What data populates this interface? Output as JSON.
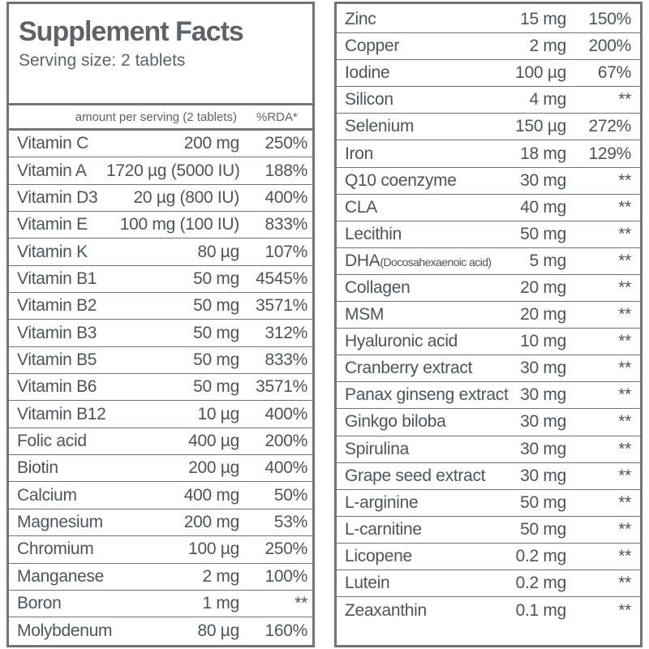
{
  "header": {
    "title": "Supplement Facts",
    "serving": "Serving size: 2 tablets",
    "amount_header": "amount per serving (2 tablets)",
    "rda_header": "%RDA*"
  },
  "left_rows": [
    {
      "name": "Vitamin C",
      "amount": "200 mg",
      "rda": "250%"
    },
    {
      "name": "Vitamin A",
      "amount": "1720 µg (5000 IU)",
      "rda": "188%"
    },
    {
      "name": "Vitamin D3",
      "amount": "20 µg (800 IU)",
      "rda": "400%"
    },
    {
      "name": "Vitamin E",
      "amount": "100 mg (100 IU)",
      "rda": "833%"
    },
    {
      "name": "Vitamin K",
      "amount": "80 µg",
      "rda": "107%"
    },
    {
      "name": "Vitamin B1",
      "amount": "50 mg",
      "rda": "4545%"
    },
    {
      "name": "Vitamin B2",
      "amount": "50 mg",
      "rda": "3571%"
    },
    {
      "name": "Vitamin B3",
      "amount": "50 mg",
      "rda": "312%"
    },
    {
      "name": "Vitamin B5",
      "amount": "50 mg",
      "rda": "833%"
    },
    {
      "name": "Vitamin B6",
      "amount": "50 mg",
      "rda": "3571%"
    },
    {
      "name": "Vitamin B12",
      "amount": "10 µg",
      "rda": "400%"
    },
    {
      "name": "Folic acid",
      "amount": "400 µg",
      "rda": "200%"
    },
    {
      "name": "Biotin",
      "amount": "200 µg",
      "rda": "400%"
    },
    {
      "name": "Calcium",
      "amount": "400 mg",
      "rda": "50%"
    },
    {
      "name": "Magnesium",
      "amount": "200 mg",
      "rda": "53%"
    },
    {
      "name": "Chromium",
      "amount": "100 µg",
      "rda": "250%"
    },
    {
      "name": "Manganese",
      "amount": "2 mg",
      "rda": "100%"
    },
    {
      "name": "Boron",
      "amount": "1 mg",
      "rda": "**"
    },
    {
      "name": "Molybdenum",
      "amount": "80 µg",
      "rda": "160%"
    }
  ],
  "right_rows": [
    {
      "name": "Zinc",
      "amount": "15 mg",
      "rda": "150%"
    },
    {
      "name": "Copper",
      "amount": "2 mg",
      "rda": "200%"
    },
    {
      "name": "Iodine",
      "amount": "100 µg",
      "rda": "67%"
    },
    {
      "name": "Silicon",
      "amount": "4 mg",
      "rda": "**"
    },
    {
      "name": "Selenium",
      "amount": "150 µg",
      "rda": "272%"
    },
    {
      "name": "Iron",
      "amount": "18 mg",
      "rda": "129%"
    },
    {
      "name": "Q10 coenzyme",
      "amount": "30 mg",
      "rda": "**"
    },
    {
      "name": "CLA",
      "amount": "40 mg",
      "rda": "**"
    },
    {
      "name": "Lecithin",
      "amount": "50 mg",
      "rda": "**"
    },
    {
      "name": "DHA",
      "name_sub": "(Docosahexaenoic acid)",
      "amount": "5 mg",
      "rda": "**"
    },
    {
      "name": "Collagen",
      "amount": "20 mg",
      "rda": "**"
    },
    {
      "name": "MSM",
      "amount": "20 mg",
      "rda": "**"
    },
    {
      "name": "Hyaluronic acid",
      "amount": "10 mg",
      "rda": "**"
    },
    {
      "name": "Cranberry extract",
      "amount": "30 mg",
      "rda": "**"
    },
    {
      "name": "Panax ginseng extract",
      "amount": "30 mg",
      "rda": "**"
    },
    {
      "name": "Ginkgo biloba",
      "amount": "30 mg",
      "rda": "**"
    },
    {
      "name": "Spirulina",
      "amount": "30 mg",
      "rda": "**"
    },
    {
      "name": "Grape seed extract",
      "amount": "30 mg",
      "rda": "**"
    },
    {
      "name": "L-arginine",
      "amount": "50 mg",
      "rda": "**"
    },
    {
      "name": "L-carnitine",
      "amount": "50 mg",
      "rda": "**"
    },
    {
      "name": "Licopene",
      "amount": "0.2 mg",
      "rda": "**"
    },
    {
      "name": "Lutein",
      "amount": "0.2 mg",
      "rda": "**"
    },
    {
      "name": "Zeaxanthin",
      "amount": "0.1 mg",
      "rda": "**"
    }
  ]
}
